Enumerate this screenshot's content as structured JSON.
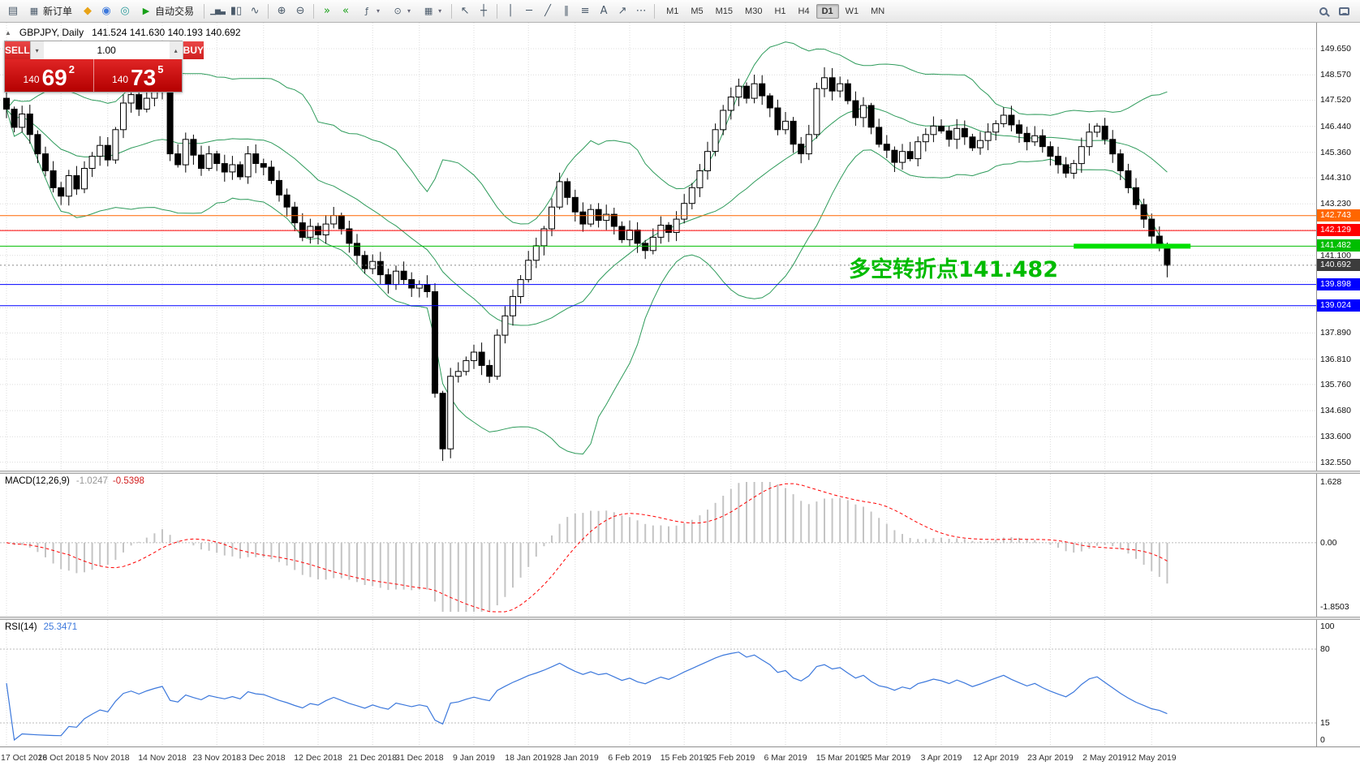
{
  "toolbar": {
    "new_order_label": "新订单",
    "autotrading_label": "自动交易",
    "timeframes": [
      "M1",
      "M5",
      "M15",
      "M30",
      "H1",
      "H4",
      "D1",
      "W1",
      "MN"
    ],
    "active_timeframe": "D1"
  },
  "icons": {
    "new_chart": "▤",
    "new_order": "▦",
    "favorites": "◆",
    "market_watch": "◉",
    "navigator": "◎",
    "autotrading_play": "▶",
    "bar_chart": "▁▅▃",
    "candle_chart": "▮▯",
    "line_chart": "∿",
    "zoom_in": "⊕",
    "zoom_out": "⊖",
    "auto_scroll": "»",
    "chart_shift": "«",
    "indicators": "ƒ",
    "periods": "⊙",
    "templates": "▦",
    "dropdown_caret": "▾",
    "cursor": "↖",
    "crosshair": "┼",
    "vline": "│",
    "hline": "─",
    "trendline": "╱",
    "channel": "∥",
    "fibonacci": "≡",
    "text_tool": "A",
    "arrow_tool": "↗",
    "shapes": "⋯",
    "collapse": "▲",
    "spinner_down": "▾",
    "spinner_up": "▴"
  },
  "trade_panel": {
    "sell_label": "SELL",
    "buy_label": "BUY",
    "volume": "1.00",
    "sell_price": {
      "big_figure": "140",
      "pips": "69",
      "pipette": "2"
    },
    "buy_price": {
      "big_figure": "140",
      "pips": "73",
      "pipette": "5"
    }
  },
  "chart_header": {
    "symbol": "GBPJPY, Daily",
    "ohlc": "141.524 141.630 140.193 140.692"
  },
  "annotation": {
    "text": "多空转折点141.482",
    "color": "#00BB00",
    "segment": {
      "price": 141.482,
      "from_index": 137,
      "to_index": 152,
      "color": "#00E000"
    }
  },
  "levels": [
    {
      "price": 142.743,
      "label": "142.743",
      "color": "#FF6600"
    },
    {
      "price": 142.129,
      "label": "142.129",
      "color": "#FF0000"
    },
    {
      "price": 141.482,
      "label": "141.482",
      "color": "#00BE00"
    },
    {
      "price": 139.898,
      "label": "139.898",
      "color": "#0000FF"
    },
    {
      "price": 139.024,
      "label": "139.024",
      "color": "#0000FF"
    }
  ],
  "current_price": {
    "price": 140.692,
    "label": "140.692",
    "color": "#3C3C3C"
  },
  "macd_panel": {
    "name": "MACD(12,26,9)",
    "value_main": "-1.0247",
    "value_signal": "-0.5398",
    "scale_max": "1.628",
    "scale_zero": "0.00",
    "scale_min": "-1.8503",
    "histogram_color": "#C4C4C4",
    "signal_color": "#FF0000"
  },
  "rsi_panel": {
    "name": "RSI(14)",
    "value": "25.3471",
    "scale": [
      "100",
      "80",
      "15",
      "0"
    ],
    "levels": [
      80,
      15
    ],
    "line_color": "#3C78DC"
  },
  "chart_data": {
    "type": "candlestick",
    "symbol": "GBPJPY",
    "timeframe": "Daily",
    "bull_color": "#FFFFFF",
    "bear_color": "#000000",
    "outline_color": "#000000",
    "bollinger": {
      "period": 20,
      "deviation": 2,
      "color": "#2E9B5B"
    },
    "first_open": 147.6,
    "closes": [
      147.15,
      146.4,
      146.95,
      146.1,
      145.3,
      144.6,
      143.9,
      143.55,
      144.4,
      143.85,
      144.7,
      145.2,
      145.65,
      145.05,
      146.3,
      147.4,
      147.75,
      147.15,
      147.6,
      147.95,
      148.25,
      145.3,
      144.85,
      145.9,
      145.25,
      144.7,
      145.3,
      144.9,
      144.55,
      144.85,
      144.35,
      145.3,
      144.9,
      144.75,
      144.2,
      143.6,
      143.1,
      142.45,
      141.85,
      142.3,
      141.95,
      142.4,
      142.75,
      142.2,
      141.6,
      141.1,
      140.55,
      140.85,
      140.3,
      139.9,
      140.45,
      140.1,
      139.75,
      139.9,
      139.6,
      135.4,
      133.1,
      136.1,
      136.3,
      136.75,
      137.1,
      136.55,
      136.1,
      137.8,
      138.6,
      139.4,
      140.1,
      140.9,
      141.5,
      142.2,
      143.1,
      144.15,
      143.5,
      142.9,
      142.4,
      143.0,
      142.55,
      142.8,
      142.3,
      141.75,
      142.15,
      141.6,
      141.3,
      141.85,
      142.35,
      142.05,
      142.6,
      143.25,
      143.9,
      144.6,
      145.4,
      146.3,
      147.1,
      147.65,
      148.1,
      147.6,
      148.2,
      147.7,
      147.2,
      146.3,
      146.65,
      145.7,
      145.3,
      146.1,
      148.0,
      148.45,
      147.9,
      148.2,
      147.5,
      146.8,
      147.3,
      146.4,
      145.7,
      145.45,
      144.95,
      145.4,
      145.1,
      145.8,
      146.1,
      146.45,
      146.25,
      145.9,
      146.35,
      146.0,
      145.55,
      145.85,
      146.2,
      146.55,
      146.9,
      146.5,
      146.15,
      145.8,
      146.05,
      145.6,
      145.2,
      144.85,
      144.5,
      144.9,
      145.6,
      146.2,
      146.45,
      145.9,
      145.3,
      144.6,
      143.9,
      143.2,
      142.6,
      141.9,
      141.52,
      140.692
    ],
    "overrides": {
      "20": {
        "h": 148.55
      },
      "56": {
        "l": 132.6
      },
      "105": {
        "h": 148.88
      },
      "149": {
        "o": 141.524,
        "h": 141.63,
        "l": 140.193,
        "c": 140.692
      }
    },
    "price_grid": [
      149.65,
      148.57,
      147.52,
      146.44,
      145.36,
      144.31,
      143.23,
      142.15,
      141.1,
      140.02,
      138.94,
      137.89,
      136.81,
      135.76,
      134.68,
      133.6,
      132.55
    ],
    "price_labels": [
      "149.650",
      "148.570",
      "147.520",
      "146.440",
      "145.360",
      "144.310",
      "143.230",
      "141.100",
      "137.890",
      "136.810",
      "135.760",
      "134.680",
      "133.600",
      "132.550"
    ],
    "x_labels": [
      {
        "label": "17 Oct 2018",
        "i": 0
      },
      {
        "label": "26 Oct 2018",
        "i": 7
      },
      {
        "label": "5 Nov 2018",
        "i": 13
      },
      {
        "label": "14 Nov 2018",
        "i": 20
      },
      {
        "label": "23 Nov 2018",
        "i": 27
      },
      {
        "label": "3 Dec 2018",
        "i": 33
      },
      {
        "label": "12 Dec 2018",
        "i": 40
      },
      {
        "label": "21 Dec 2018",
        "i": 47
      },
      {
        "label": "31 Dec 2018",
        "i": 53
      },
      {
        "label": "9 Jan 2019",
        "i": 60
      },
      {
        "label": "18 Jan 2019",
        "i": 67
      },
      {
        "label": "28 Jan 2019",
        "i": 73
      },
      {
        "label": "6 Feb 2019",
        "i": 80
      },
      {
        "label": "15 Feb 2019",
        "i": 87
      },
      {
        "label": "25 Feb 2019",
        "i": 93
      },
      {
        "label": "6 Mar 2019",
        "i": 100
      },
      {
        "label": "15 Mar 2019",
        "i": 107
      },
      {
        "label": "25 Mar 2019",
        "i": 113
      },
      {
        "label": "3 Apr 2019",
        "i": 120
      },
      {
        "label": "12 Apr 2019",
        "i": 127
      },
      {
        "label": "23 Apr 2019",
        "i": 134
      },
      {
        "label": "2 May 2019",
        "i": 141
      },
      {
        "label": "12 May 2019",
        "i": 147
      }
    ]
  }
}
